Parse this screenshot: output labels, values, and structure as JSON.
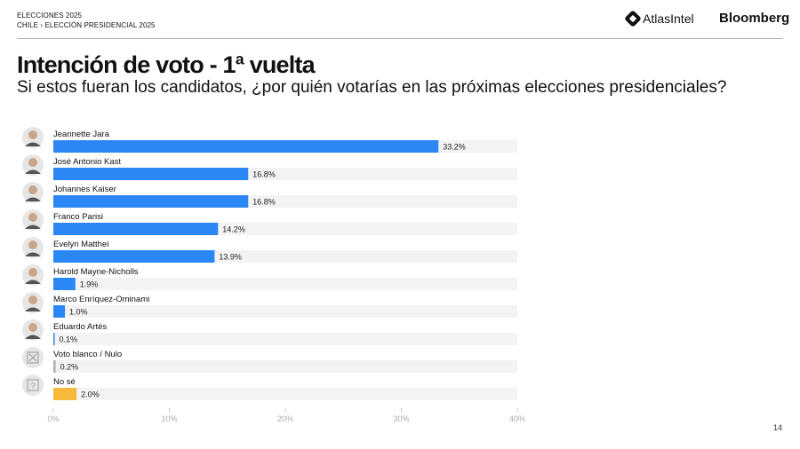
{
  "header": {
    "line1": "ELECCIONES 2025",
    "line2": "CHILE › ELECCIÓN PRESIDENCIAL 2025",
    "brand1": "AtlasIntel",
    "brand2": "Bloomberg"
  },
  "page_number": "14",
  "chart_data": {
    "type": "bar",
    "orientation": "horizontal",
    "title": "Intención de voto - 1ª vuelta",
    "subtitle": "Si estos fueran los candidatos, ¿por quién votarías en las próximas elecciones presidenciales?",
    "categories": [
      "Jeannette Jara",
      "José Antonio Kast",
      "Johannes Kaiser",
      "Franco Parisi",
      "Evelyn Matthei",
      "Harold Mayne-Nicholls",
      "Marco Enríquez-Ominami",
      "Eduardo Artés",
      "Voto blanco / Nulo",
      "No sé"
    ],
    "values": [
      33.2,
      16.8,
      16.8,
      14.2,
      13.9,
      1.9,
      1.0,
      0.1,
      0.2,
      2.0
    ],
    "value_labels": [
      "33.2%",
      "16.8%",
      "16.8%",
      "14.2%",
      "13.9%",
      "1.9%",
      "1.0%",
      "0.1%",
      "0.2%",
      "2.0%"
    ],
    "colors": [
      "#2b87f6",
      "#2b87f6",
      "#2b87f6",
      "#2b87f6",
      "#2b87f6",
      "#2b87f6",
      "#2b87f6",
      "#2b87f6",
      "#b0b0b0",
      "#f6b93b"
    ],
    "icons": [
      "avatar",
      "avatar",
      "avatar",
      "avatar",
      "avatar",
      "avatar",
      "avatar",
      "avatar",
      "x-box-icon",
      "question-box-icon"
    ],
    "xlim": [
      0,
      40
    ],
    "xticks": [
      "0%",
      "10%",
      "20%",
      "30%",
      "40%"
    ],
    "track_color": "#f3f3f3",
    "grid": false
  }
}
